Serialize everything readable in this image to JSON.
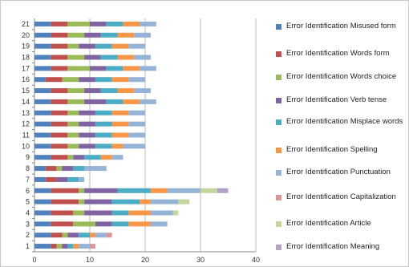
{
  "chart_data": {
    "type": "bar",
    "orientation": "horizontal",
    "stacked": true,
    "title": "",
    "xlabel": "",
    "ylabel": "",
    "xlim": [
      0,
      40
    ],
    "x_ticks": [
      "0",
      "10",
      "20",
      "30",
      "40"
    ],
    "grid": "vertical gridlines",
    "legend_position": "right",
    "categories": [
      "1",
      "2",
      "3",
      "4",
      "5",
      "6",
      "7",
      "8",
      "9",
      "10",
      "11",
      "12",
      "13",
      "14",
      "15",
      "16",
      "17",
      "18",
      "19",
      "20",
      "21"
    ],
    "series": [
      {
        "name": "Error Identification Misused form",
        "color": "#4f81bd",
        "values": [
          3,
          3,
          3,
          3,
          3,
          3,
          2,
          2,
          3,
          3,
          3,
          3,
          3,
          3,
          3,
          2,
          3,
          3,
          3,
          3,
          3
        ]
      },
      {
        "name": "Error Identification Words form",
        "color": "#c0504d",
        "values": [
          1,
          2,
          4,
          4,
          5,
          5,
          2,
          2,
          3,
          3,
          3,
          3,
          3,
          3,
          3,
          3,
          3,
          3,
          3,
          3,
          3
        ]
      },
      {
        "name": "Error Identification Words choice",
        "color": "#9bbb59",
        "values": [
          1,
          1,
          4,
          2,
          1,
          1,
          0,
          1,
          1,
          2,
          2,
          2,
          2,
          3,
          3,
          3,
          4,
          3,
          2,
          3,
          4
        ]
      },
      {
        "name": "Error Identification Verb tense",
        "color": "#8064a2",
        "values": [
          1,
          2,
          3,
          5,
          5,
          6,
          2,
          2,
          2,
          3,
          3,
          3,
          3,
          4,
          3,
          3,
          3,
          3,
          3,
          3,
          3
        ]
      },
      {
        "name": "Error Identification Misplace words",
        "color": "#4bacc6",
        "values": [
          1,
          2,
          3,
          3,
          5,
          6,
          2,
          2,
          3,
          3,
          3,
          3,
          3,
          3,
          3,
          3,
          3,
          3,
          3,
          3,
          3
        ]
      },
      {
        "name": "Error Identification Spelling",
        "color": "#f79646",
        "values": [
          1,
          1,
          4,
          4,
          2,
          3,
          0,
          0,
          2,
          2,
          3,
          3,
          3,
          3,
          3,
          3,
          3,
          3,
          3,
          3,
          3
        ]
      },
      {
        "name": "Error Identification Punctuation",
        "color": "#95b3d7",
        "values": [
          2,
          2,
          3,
          4,
          5,
          6,
          1,
          4,
          2,
          4,
          3,
          3,
          3,
          3,
          3,
          3,
          3,
          3,
          3,
          3,
          3
        ]
      },
      {
        "name": "Error Identification Capitalization",
        "color": "#d99694",
        "values": [
          1,
          1,
          0,
          0,
          0,
          0,
          0,
          0,
          0,
          0,
          0,
          0,
          0,
          0,
          0,
          0,
          0,
          0,
          0,
          0,
          0
        ]
      },
      {
        "name": "Error Identification Article",
        "color": "#c3d69b",
        "values": [
          0,
          0,
          0,
          1,
          2,
          3,
          0,
          0,
          0,
          0,
          0,
          0,
          0,
          0,
          0,
          0,
          0,
          0,
          0,
          0,
          0
        ]
      },
      {
        "name": "Error Identification Meaning",
        "color": "#b2a2c7",
        "values": [
          0,
          0,
          0,
          0,
          0,
          2,
          0,
          0,
          0,
          0,
          0,
          0,
          0,
          0,
          0,
          0,
          0,
          0,
          0,
          0,
          0
        ]
      }
    ]
  }
}
